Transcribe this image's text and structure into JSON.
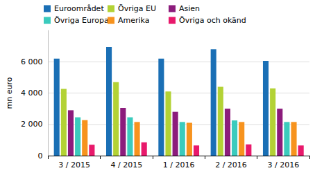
{
  "chart_data": {
    "type": "bar",
    "y_label": "mn euro",
    "categories": [
      "3 / 2015",
      "4 / 2015",
      "1 / 2016",
      "2 / 2016",
      "3 / 2016"
    ],
    "series": [
      {
        "name": "Euroområdet",
        "color": "#1a6fb5",
        "values": [
          6200,
          6940,
          6200,
          6800,
          6050
        ]
      },
      {
        "name": "Övriga EU",
        "color": "#b3d235",
        "values": [
          4270,
          4700,
          4100,
          4400,
          4300
        ]
      },
      {
        "name": "Asien",
        "color": "#8c1c7c",
        "values": [
          2900,
          3050,
          2800,
          3000,
          3000
        ]
      },
      {
        "name": "Övriga Europa",
        "color": "#3bcbbd",
        "values": [
          2450,
          2450,
          2150,
          2250,
          2150
        ]
      },
      {
        "name": "Amerika",
        "color": "#f7931e",
        "values": [
          2270,
          2150,
          2100,
          2150,
          2150
        ]
      },
      {
        "name": "Övriga och okänd",
        "color": "#e8196b",
        "values": [
          700,
          850,
          650,
          720,
          650
        ]
      }
    ],
    "ylim": [
      0,
      8000
    ],
    "yticks": [
      0,
      {
        "value": 2000,
        "label": "2 000"
      },
      {
        "value": 4000,
        "label": "4 000"
      },
      {
        "value": 6000,
        "label": "6 000"
      }
    ],
    "grid": true,
    "legend": "top-left"
  }
}
